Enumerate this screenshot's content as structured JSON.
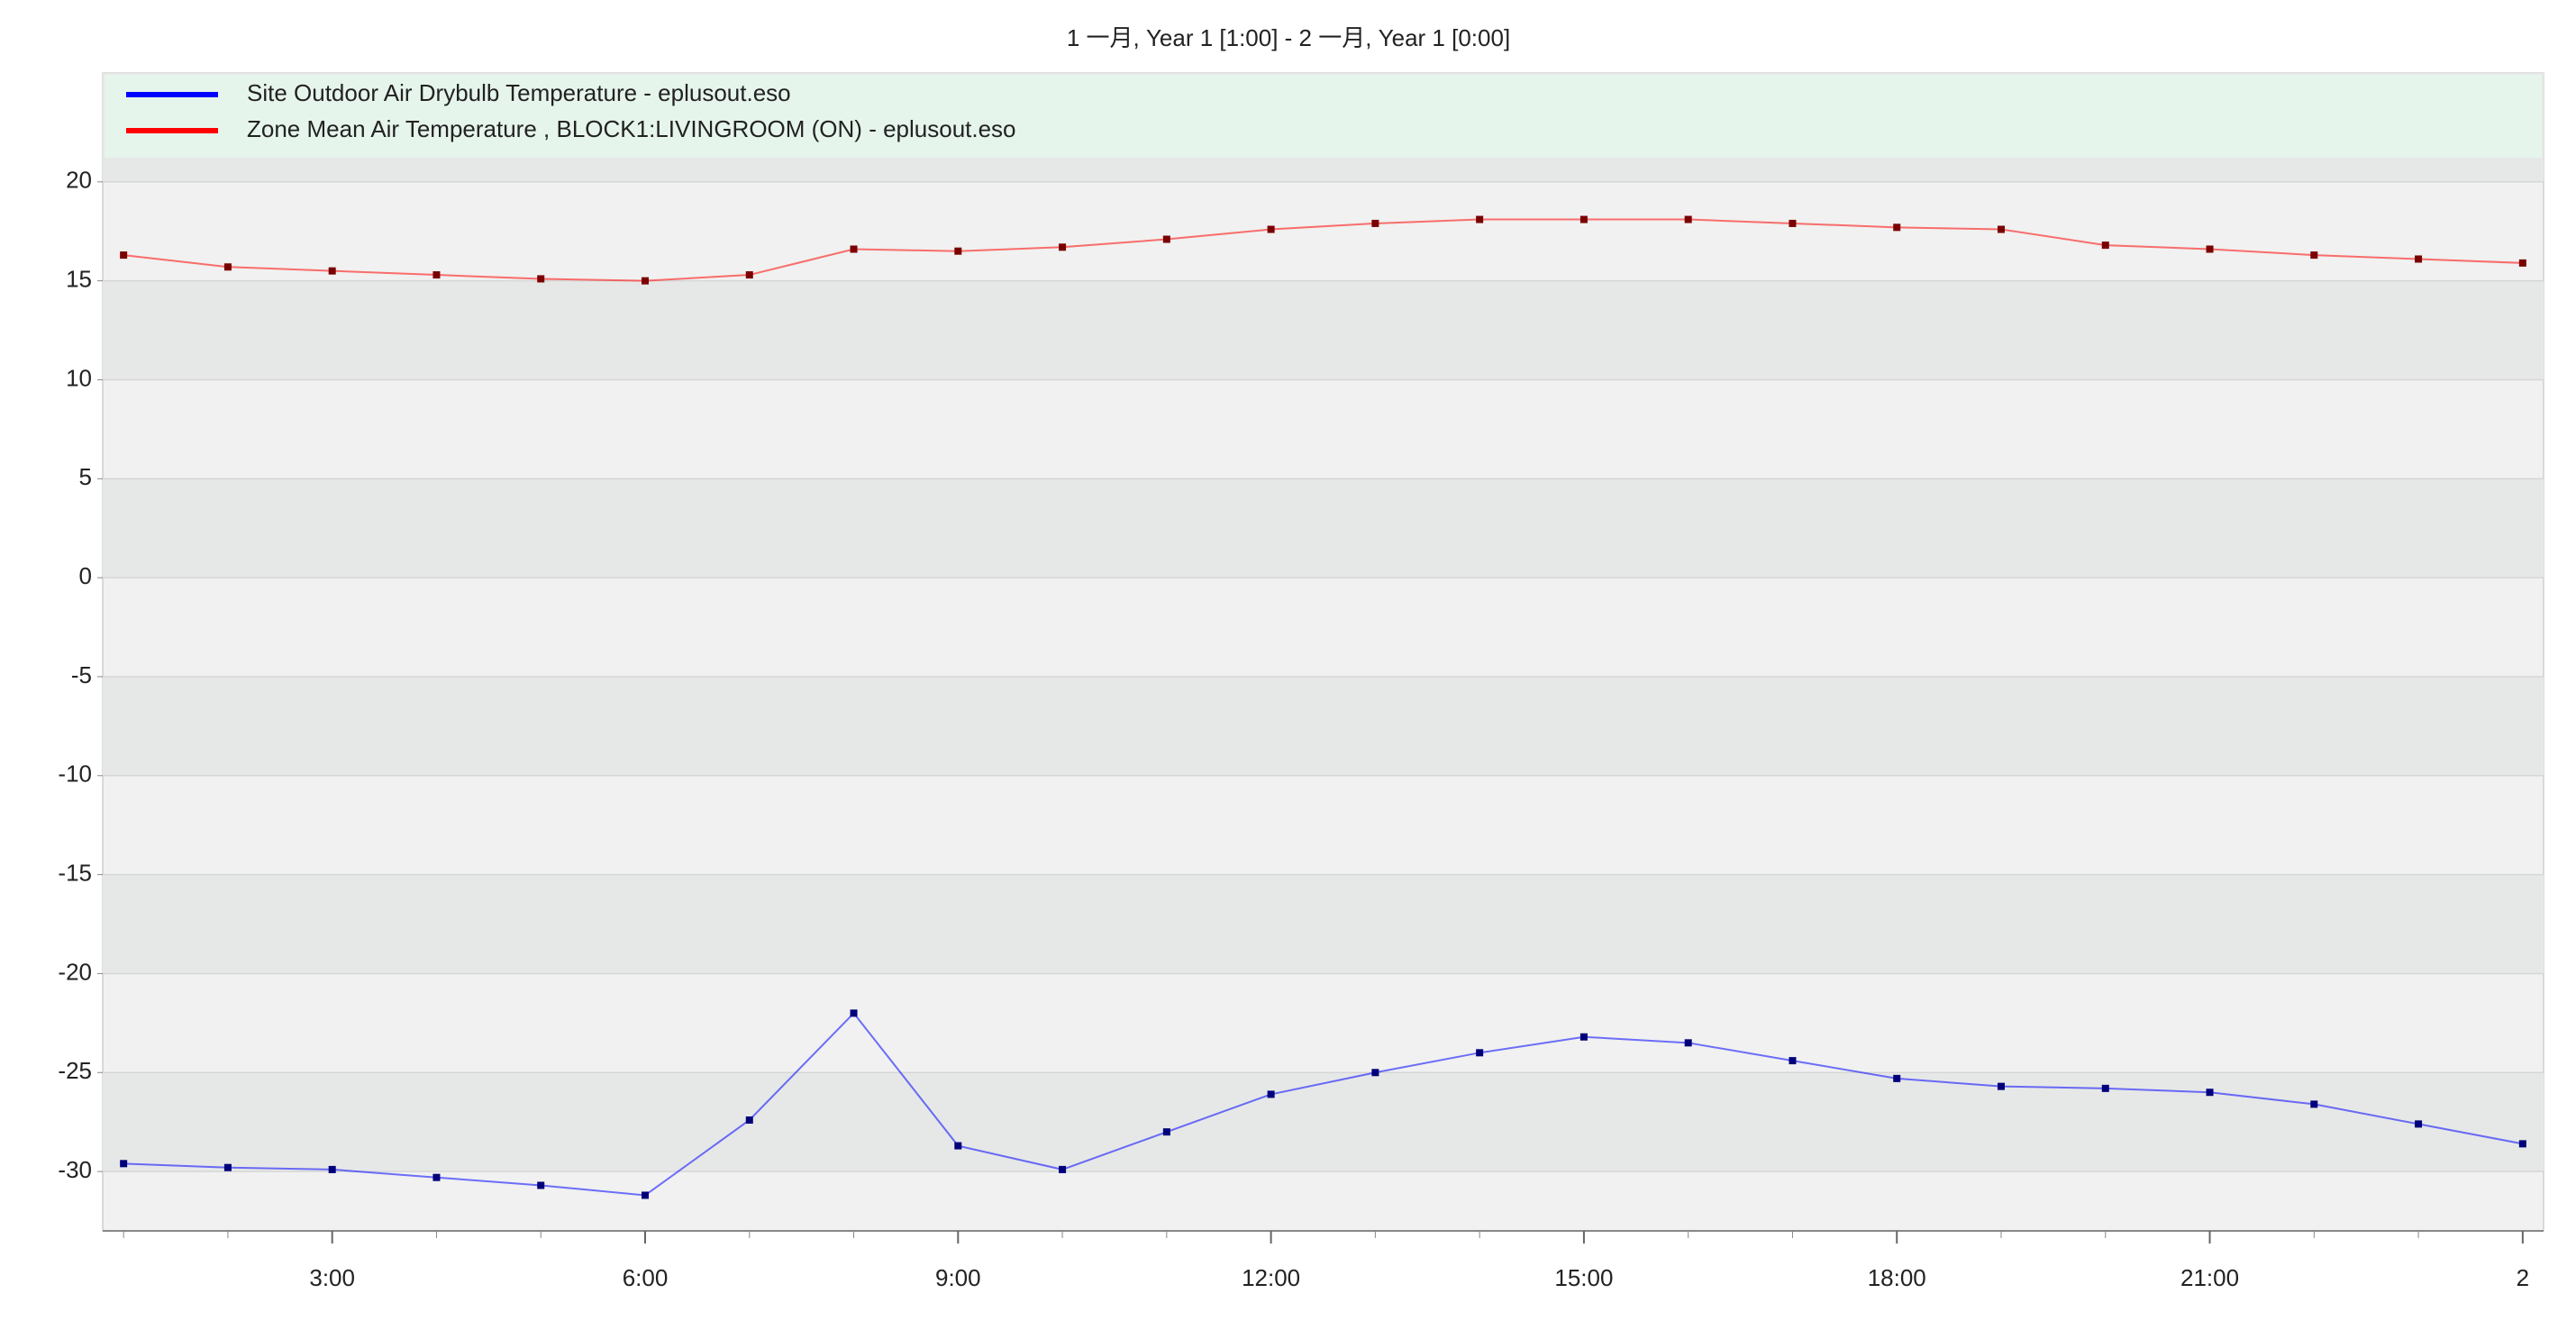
{
  "chart_data": {
    "type": "line",
    "title": "1 一月, Year 1 [1:00] - 2 一月, Year 1 [0:00]",
    "x": [
      1,
      2,
      3,
      4,
      5,
      6,
      7,
      8,
      9,
      10,
      11,
      12,
      13,
      14,
      15,
      16,
      17,
      18,
      19,
      20,
      21,
      22,
      23,
      24
    ],
    "xlim": [
      0.8,
      24.2
    ],
    "xticks": [
      {
        "value": 3,
        "label": "3:00"
      },
      {
        "value": 6,
        "label": "6:00"
      },
      {
        "value": 9,
        "label": "9:00"
      },
      {
        "value": 12,
        "label": "12:00"
      },
      {
        "value": 15,
        "label": "15:00"
      },
      {
        "value": 18,
        "label": "18:00"
      },
      {
        "value": 21,
        "label": "21:00"
      },
      {
        "value": 24,
        "label": "2"
      }
    ],
    "ylim": [
      -33,
      25.5
    ],
    "yticks": [
      -30,
      -25,
      -20,
      -15,
      -10,
      -5,
      0,
      5,
      10,
      15,
      20
    ],
    "grid": true,
    "legend": "top",
    "series": [
      {
        "name": "Site Outdoor Air Drybulb Temperature  - eplusout.eso",
        "color": "#0000ff",
        "marker_color": "#00007a",
        "values": [
          -29.6,
          -29.8,
          -29.9,
          -30.3,
          -30.7,
          -31.2,
          -27.4,
          -22.0,
          -28.7,
          -29.9,
          -28.0,
          -26.1,
          -25.0,
          -24.0,
          -23.2,
          -23.5,
          -24.4,
          -25.3,
          -25.7,
          -25.8,
          -26.0,
          -26.6,
          -27.6,
          -28.6
        ]
      },
      {
        "name": "Zone Mean Air Temperature , BLOCK1:LIVINGROOM (ON) - eplusout.eso",
        "color": "#ff0000",
        "marker_color": "#7a0000",
        "values": [
          16.3,
          15.7,
          15.5,
          15.3,
          15.1,
          15.0,
          15.3,
          16.6,
          16.5,
          16.7,
          17.1,
          17.6,
          17.9,
          18.1,
          18.1,
          18.1,
          17.9,
          17.7,
          17.6,
          16.8,
          16.6,
          16.3,
          16.1,
          15.9
        ]
      }
    ]
  }
}
